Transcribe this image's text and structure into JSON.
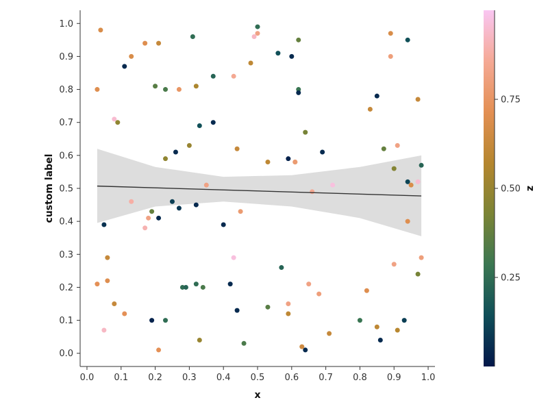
{
  "chart_data": {
    "type": "scatter",
    "xlabel": "x",
    "ylabel": "custom label",
    "colorbar_label": "z",
    "xlim": [
      -0.02,
      1.02
    ],
    "ylim": [
      -0.04,
      1.04
    ],
    "x_ticks": [
      "0.0",
      "0.1",
      "0.2",
      "0.3",
      "0.4",
      "0.5",
      "0.6",
      "0.7",
      "0.8",
      "0.9",
      "1.0"
    ],
    "y_ticks": [
      "0.0",
      "0.1",
      "0.2",
      "0.3",
      "0.4",
      "0.5",
      "0.6",
      "0.7",
      "0.8",
      "0.9",
      "1.0"
    ],
    "colorbar": {
      "range": [
        0.0,
        1.0
      ],
      "ticks": [
        "0.25",
        "0.50",
        "0.75"
      ],
      "colormap": [
        "#03174a",
        "#0f4e58",
        "#3b7752",
        "#7b8435",
        "#b5862e",
        "#e38f53",
        "#f5a995",
        "#f9c6f2"
      ]
    },
    "regression": {
      "line": {
        "x": [
          0.03,
          0.98
        ],
        "y": [
          0.507,
          0.477
        ]
      },
      "ci_x": [
        0.03,
        0.2,
        0.4,
        0.6,
        0.8,
        0.98
      ],
      "ci_upper": [
        0.62,
        0.565,
        0.535,
        0.54,
        0.565,
        0.6
      ],
      "ci_lower": [
        0.395,
        0.445,
        0.46,
        0.445,
        0.41,
        0.355
      ],
      "line_color": "#333333",
      "band_color": "#dddddd"
    },
    "points": [
      {
        "x": 0.04,
        "y": 0.98,
        "z": 0.68
      },
      {
        "x": 0.13,
        "y": 0.9,
        "z": 0.68
      },
      {
        "x": 0.17,
        "y": 0.94,
        "z": 0.7
      },
      {
        "x": 0.21,
        "y": 0.94,
        "z": 0.62
      },
      {
        "x": 0.11,
        "y": 0.87,
        "z": 0.05
      },
      {
        "x": 0.03,
        "y": 0.8,
        "z": 0.7
      },
      {
        "x": 0.2,
        "y": 0.81,
        "z": 0.35
      },
      {
        "x": 0.23,
        "y": 0.8,
        "z": 0.32
      },
      {
        "x": 0.27,
        "y": 0.8,
        "z": 0.75
      },
      {
        "x": 0.32,
        "y": 0.81,
        "z": 0.55
      },
      {
        "x": 0.31,
        "y": 0.96,
        "z": 0.25
      },
      {
        "x": 0.37,
        "y": 0.84,
        "z": 0.22
      },
      {
        "x": 0.43,
        "y": 0.84,
        "z": 0.85
      },
      {
        "x": 0.48,
        "y": 0.88,
        "z": 0.6
      },
      {
        "x": 0.49,
        "y": 0.96,
        "z": 0.93
      },
      {
        "x": 0.5,
        "y": 0.97,
        "z": 0.82
      },
      {
        "x": 0.5,
        "y": 0.99,
        "z": 0.25
      },
      {
        "x": 0.56,
        "y": 0.91,
        "z": 0.15
      },
      {
        "x": 0.6,
        "y": 0.9,
        "z": 0.05
      },
      {
        "x": 0.62,
        "y": 0.95,
        "z": 0.38
      },
      {
        "x": 0.62,
        "y": 0.8,
        "z": 0.28
      },
      {
        "x": 0.62,
        "y": 0.79,
        "z": 0.05
      },
      {
        "x": 0.89,
        "y": 0.97,
        "z": 0.68
      },
      {
        "x": 0.94,
        "y": 0.95,
        "z": 0.15
      },
      {
        "x": 0.89,
        "y": 0.9,
        "z": 0.8
      },
      {
        "x": 0.85,
        "y": 0.78,
        "z": 0.05
      },
      {
        "x": 0.83,
        "y": 0.74,
        "z": 0.62
      },
      {
        "x": 0.97,
        "y": 0.77,
        "z": 0.62
      },
      {
        "x": 0.08,
        "y": 0.71,
        "z": 0.95
      },
      {
        "x": 0.09,
        "y": 0.7,
        "z": 0.48
      },
      {
        "x": 0.33,
        "y": 0.69,
        "z": 0.15
      },
      {
        "x": 0.37,
        "y": 0.7,
        "z": 0.05
      },
      {
        "x": 0.3,
        "y": 0.63,
        "z": 0.5
      },
      {
        "x": 0.26,
        "y": 0.61,
        "z": 0.05
      },
      {
        "x": 0.23,
        "y": 0.59,
        "z": 0.48
      },
      {
        "x": 0.44,
        "y": 0.62,
        "z": 0.62
      },
      {
        "x": 0.53,
        "y": 0.58,
        "z": 0.6
      },
      {
        "x": 0.59,
        "y": 0.59,
        "z": 0.03
      },
      {
        "x": 0.61,
        "y": 0.58,
        "z": 0.7
      },
      {
        "x": 0.61,
        "y": 0.58,
        "z": 0.78
      },
      {
        "x": 0.64,
        "y": 0.67,
        "z": 0.42
      },
      {
        "x": 0.69,
        "y": 0.61,
        "z": 0.05
      },
      {
        "x": 0.87,
        "y": 0.62,
        "z": 0.38
      },
      {
        "x": 0.91,
        "y": 0.63,
        "z": 0.82
      },
      {
        "x": 0.9,
        "y": 0.56,
        "z": 0.45
      },
      {
        "x": 0.98,
        "y": 0.57,
        "z": 0.22
      },
      {
        "x": 0.94,
        "y": 0.52,
        "z": 0.12
      },
      {
        "x": 0.95,
        "y": 0.51,
        "z": 0.68
      },
      {
        "x": 0.97,
        "y": 0.52,
        "z": 0.95
      },
      {
        "x": 0.35,
        "y": 0.51,
        "z": 0.82
      },
      {
        "x": 0.66,
        "y": 0.49,
        "z": 0.85
      },
      {
        "x": 0.72,
        "y": 0.51,
        "z": 0.97
      },
      {
        "x": 0.05,
        "y": 0.39,
        "z": 0.07
      },
      {
        "x": 0.13,
        "y": 0.46,
        "z": 0.88
      },
      {
        "x": 0.18,
        "y": 0.41,
        "z": 0.82
      },
      {
        "x": 0.19,
        "y": 0.43,
        "z": 0.38
      },
      {
        "x": 0.17,
        "y": 0.38,
        "z": 0.9
      },
      {
        "x": 0.21,
        "y": 0.41,
        "z": 0.05
      },
      {
        "x": 0.25,
        "y": 0.46,
        "z": 0.1
      },
      {
        "x": 0.27,
        "y": 0.44,
        "z": 0.08
      },
      {
        "x": 0.32,
        "y": 0.45,
        "z": 0.05
      },
      {
        "x": 0.4,
        "y": 0.39,
        "z": 0.05
      },
      {
        "x": 0.45,
        "y": 0.43,
        "z": 0.78
      },
      {
        "x": 0.94,
        "y": 0.4,
        "z": 0.7
      },
      {
        "x": 0.06,
        "y": 0.29,
        "z": 0.62
      },
      {
        "x": 0.03,
        "y": 0.21,
        "z": 0.72
      },
      {
        "x": 0.06,
        "y": 0.22,
        "z": 0.7
      },
      {
        "x": 0.08,
        "y": 0.15,
        "z": 0.62
      },
      {
        "x": 0.11,
        "y": 0.12,
        "z": 0.72
      },
      {
        "x": 0.05,
        "y": 0.07,
        "z": 0.93
      },
      {
        "x": 0.19,
        "y": 0.1,
        "z": 0.03
      },
      {
        "x": 0.23,
        "y": 0.1,
        "z": 0.25
      },
      {
        "x": 0.28,
        "y": 0.2,
        "z": 0.25
      },
      {
        "x": 0.29,
        "y": 0.2,
        "z": 0.22
      },
      {
        "x": 0.32,
        "y": 0.21,
        "z": 0.25
      },
      {
        "x": 0.34,
        "y": 0.2,
        "z": 0.32
      },
      {
        "x": 0.42,
        "y": 0.21,
        "z": 0.05
      },
      {
        "x": 0.43,
        "y": 0.29,
        "z": 0.97
      },
      {
        "x": 0.44,
        "y": 0.13,
        "z": 0.05
      },
      {
        "x": 0.53,
        "y": 0.14,
        "z": 0.35
      },
      {
        "x": 0.57,
        "y": 0.26,
        "z": 0.22
      },
      {
        "x": 0.59,
        "y": 0.15,
        "z": 0.82
      },
      {
        "x": 0.59,
        "y": 0.12,
        "z": 0.6
      },
      {
        "x": 0.65,
        "y": 0.21,
        "z": 0.82
      },
      {
        "x": 0.68,
        "y": 0.18,
        "z": 0.8
      },
      {
        "x": 0.82,
        "y": 0.19,
        "z": 0.7
      },
      {
        "x": 0.8,
        "y": 0.1,
        "z": 0.28
      },
      {
        "x": 0.71,
        "y": 0.06,
        "z": 0.62
      },
      {
        "x": 0.85,
        "y": 0.08,
        "z": 0.6
      },
      {
        "x": 0.86,
        "y": 0.04,
        "z": 0.05
      },
      {
        "x": 0.91,
        "y": 0.07,
        "z": 0.58
      },
      {
        "x": 0.93,
        "y": 0.1,
        "z": 0.1
      },
      {
        "x": 0.9,
        "y": 0.27,
        "z": 0.82
      },
      {
        "x": 0.98,
        "y": 0.29,
        "z": 0.8
      },
      {
        "x": 0.97,
        "y": 0.24,
        "z": 0.42
      },
      {
        "x": 0.21,
        "y": 0.01,
        "z": 0.72
      },
      {
        "x": 0.33,
        "y": 0.04,
        "z": 0.5
      },
      {
        "x": 0.46,
        "y": 0.03,
        "z": 0.32
      },
      {
        "x": 0.63,
        "y": 0.02,
        "z": 0.65
      },
      {
        "x": 0.64,
        "y": 0.01,
        "z": 0.05
      }
    ]
  }
}
